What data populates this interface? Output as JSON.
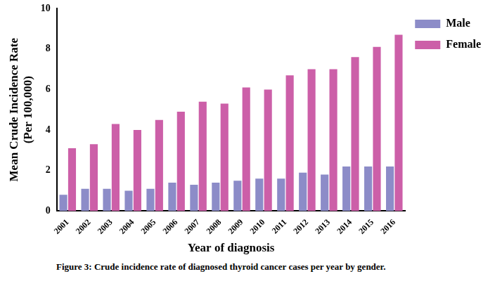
{
  "chart_data": {
    "type": "bar",
    "caption": "Figure 3: Crude incidence rate of diagnosed thyroid cancer cases per year by gender.",
    "x_label": "Year of diagnosis",
    "y_label": [
      "Mean Crude Incidence Rate",
      "(Per 100,000)"
    ],
    "categories": [
      "2001",
      "2002",
      "2003",
      "2004",
      "2005",
      "2006",
      "2007",
      "2008",
      "2009",
      "2010",
      "2011",
      "2012",
      "2013",
      "2014",
      "2015",
      "2016"
    ],
    "series": [
      {
        "name": "Male",
        "color": "#8c8cc8",
        "values": [
          0.8,
          1.1,
          1.1,
          1.0,
          1.1,
          1.4,
          1.3,
          1.4,
          1.5,
          1.6,
          1.6,
          1.9,
          1.8,
          2.2,
          2.2,
          2.2
        ]
      },
      {
        "name": "Female",
        "color": "#cc5fa8",
        "values": [
          3.1,
          3.3,
          4.3,
          4.0,
          4.5,
          4.9,
          5.4,
          5.3,
          6.1,
          6.0,
          6.7,
          7.0,
          7.0,
          7.6,
          8.1,
          8.7
        ]
      }
    ],
    "ylim": [
      0,
      10
    ],
    "yticks": [
      0,
      2,
      4,
      6,
      8,
      10
    ],
    "grid": false,
    "legend": "right"
  }
}
